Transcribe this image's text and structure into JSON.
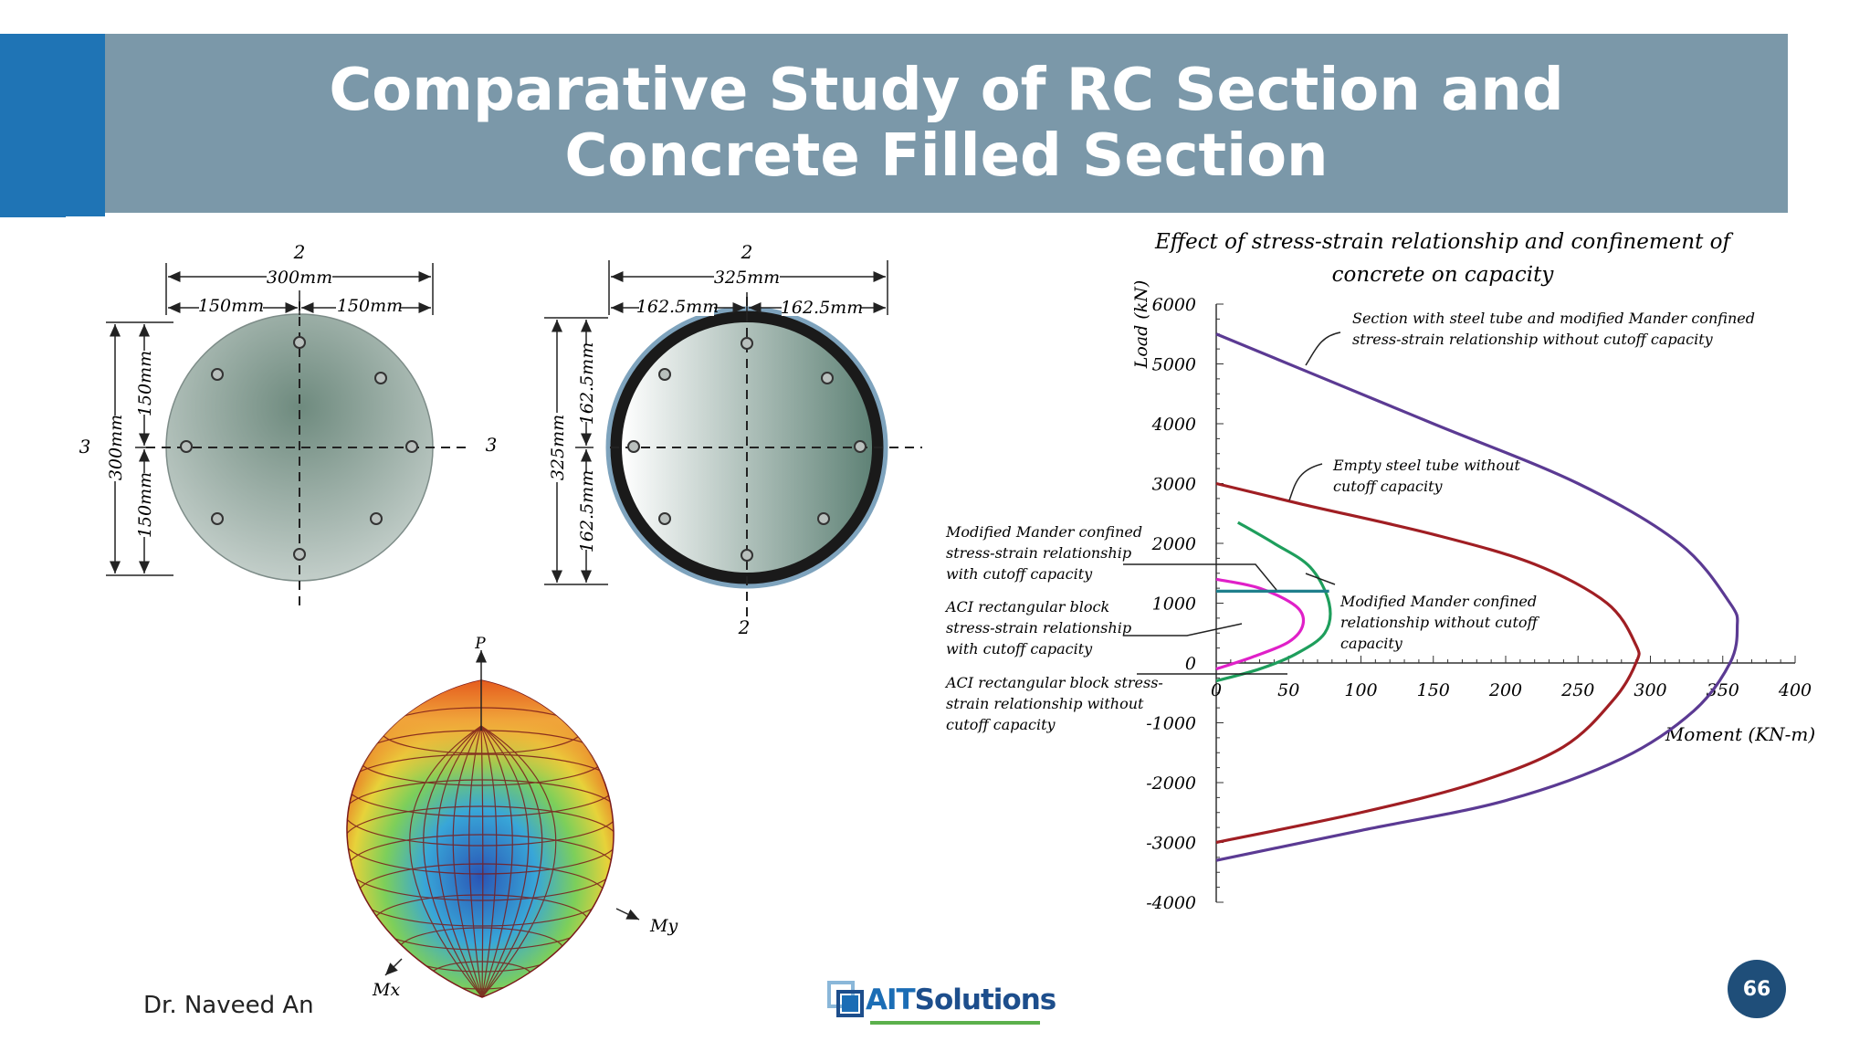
{
  "slide": {
    "title": "Comparative Study of RC Section and Concrete Filled Section",
    "author": "Dr. Naveed An",
    "page_number": "66",
    "logo": {
      "ait": "AIT",
      "solutions": "Solutions"
    }
  },
  "rc_section": {
    "top_axis_label": "2",
    "width_total": "300mm",
    "width_left": "150mm",
    "width_right": "150mm",
    "height_total": "300mm",
    "height_top": "150mm",
    "height_bottom": "150mm",
    "left_axis_label": "3",
    "right_axis_label": "3"
  },
  "cfs_section": {
    "top_axis_label": "2",
    "bottom_axis_label": "2",
    "width_total": "325mm",
    "width_left": "162.5mm",
    "width_right": "162.5mm",
    "height_total": "325mm",
    "height_top": "162.5mm",
    "height_bottom": "162.5mm"
  },
  "surface_3d": {
    "axis_p": "P",
    "axis_my": "My",
    "axis_mx": "Mx"
  },
  "chart_data": {
    "type": "line",
    "title_line1": "Effect of stress-strain relationship and confinement of",
    "title_line2": "concrete on capacity",
    "xlabel": "Moment (KN-m)",
    "ylabel": "Load (kN)",
    "xlim": [
      0,
      400
    ],
    "ylim": [
      -4000,
      6000
    ],
    "x_ticks": [
      "0",
      "50",
      "100",
      "150",
      "200",
      "250",
      "300",
      "350",
      "400"
    ],
    "y_ticks": [
      "6000",
      "5000",
      "4000",
      "3000",
      "2000",
      "1000",
      "0",
      "-1000",
      "-2000",
      "-3000",
      "-4000"
    ],
    "series": [
      {
        "color": "#5b3a93",
        "x": [
          0,
          60,
          150,
          250,
          320,
          355,
          360,
          355,
          330,
          280,
          200,
          100,
          0
        ],
        "y": [
          5500,
          4900,
          4000,
          3000,
          2000,
          1000,
          600,
          0,
          -800,
          -1600,
          -2300,
          -2800,
          -3300
        ]
      },
      {
        "color": "#a01e23",
        "x": [
          0,
          60,
          150,
          220,
          270,
          290,
          290,
          275,
          240,
          180,
          100,
          0
        ],
        "y": [
          3000,
          2650,
          2150,
          1650,
          1000,
          300,
          0,
          -600,
          -1400,
          -2000,
          -2500,
          -3000
        ]
      },
      {
        "color": "#1e9e5c",
        "x": [
          15,
          40,
          65,
          78,
          75,
          55,
          30,
          0
        ],
        "y": [
          2350,
          2000,
          1600,
          1000,
          500,
          150,
          -100,
          -300
        ]
      },
      {
        "color": "#e020c8",
        "x": [
          0,
          30,
          55,
          60,
          50,
          25,
          0
        ],
        "y": [
          1400,
          1250,
          950,
          650,
          350,
          100,
          -100
        ]
      },
      {
        "color": "#1f7f8c",
        "x": [
          0,
          78
        ],
        "y": [
          1200,
          1200
        ]
      }
    ],
    "annotations": [
      "Section with steel tube and modified Mander confined",
      "stress-strain relationship without cutoff capacity",
      "Empty steel tube without",
      "cutoff capacity",
      "Modified Mander confined",
      "stress-strain relationship",
      "with cutoff capacity",
      "ACI rectangular block",
      "stress-strain relationship",
      "with cutoff capacity",
      "ACI rectangular block stress-",
      "strain relationship without",
      "cutoff capacity",
      "Modified Mander confined",
      "relationship without cutoff",
      "capacity"
    ]
  }
}
